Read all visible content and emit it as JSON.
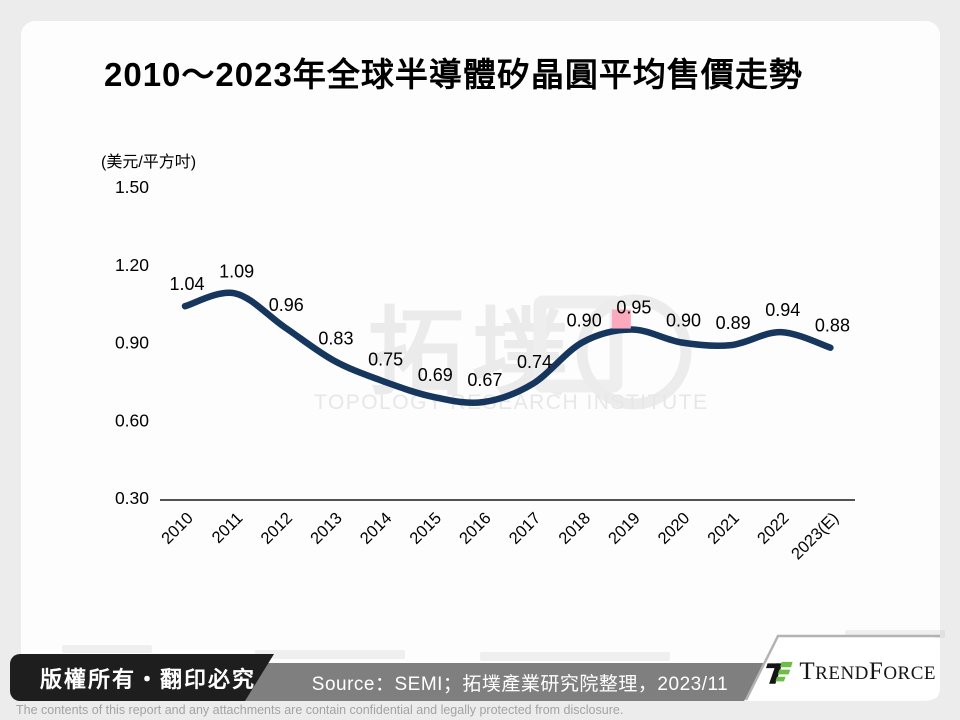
{
  "chart_data": {
    "type": "line",
    "title": "2010～2023年全球半導體矽晶圓平均售價走勢",
    "unit": "(美元/平方吋)",
    "categories": [
      "2010",
      "2011",
      "2012",
      "2013",
      "2014",
      "2015",
      "2016",
      "2017",
      "2018",
      "2019",
      "2020",
      "2021",
      "2022",
      "2023(E)"
    ],
    "values": [
      1.04,
      1.09,
      0.96,
      0.83,
      0.75,
      0.69,
      0.67,
      0.74,
      0.9,
      0.95,
      0.9,
      0.89,
      0.94,
      0.88
    ],
    "ylim": [
      0.3,
      1.5
    ],
    "yticks": [
      1.5,
      1.2,
      0.9,
      0.6,
      0.3
    ],
    "grid": false,
    "legend": false,
    "data_labels": true,
    "line_color": "#17365d",
    "highlight_index": 9,
    "highlight_color": "#fba9be"
  },
  "watermark": {
    "cjk": "拓墣",
    "latin": "TOPOLOGY RESEARCH INSTITUTE"
  },
  "footer": {
    "copyright": "版權所有‧翻印必究",
    "source": "Source：SEMI；拓墣產業研究院整理，2023/11",
    "brand_parts": {
      "t": "T",
      "rend": "REND",
      "f": "F",
      "orce": "ORCE"
    },
    "brand_green": "#6cbe45",
    "disclaimer": "The contents of this report and any attachments are contain confidential and legally protected from disclosure."
  }
}
